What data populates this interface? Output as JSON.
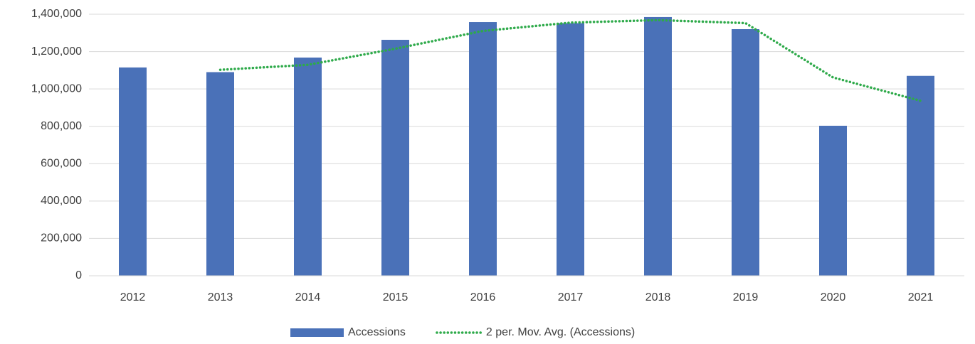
{
  "chart_data": {
    "type": "bar",
    "categories": [
      "2012",
      "2013",
      "2014",
      "2015",
      "2016",
      "2017",
      "2018",
      "2019",
      "2020",
      "2021"
    ],
    "series": [
      {
        "name": "Accessions",
        "type": "bar",
        "color": "#4a71b8",
        "values": [
          1115000,
          1090000,
          1168000,
          1263000,
          1358000,
          1352000,
          1385000,
          1320000,
          803000,
          1070000
        ]
      },
      {
        "name": "2 per. Mov. Avg. (Accessions)",
        "type": "line",
        "color": "#2eaa4a",
        "values": [
          null,
          1102500,
          1129000,
          1215500,
          1310500,
          1355000,
          1368500,
          1352500,
          1061500,
          936500
        ]
      }
    ],
    "ylim": [
      0,
      1400000
    ],
    "yticks": [
      0,
      {
        "value": 200000,
        "label": "200,000"
      },
      {
        "value": 400000,
        "label": "400,000"
      },
      {
        "value": 600000,
        "label": "600,000"
      },
      {
        "value": 800000,
        "label": "800,000"
      },
      {
        "value": 1000000,
        "label": "1,000,000"
      },
      {
        "value": 1200000,
        "label": "1,200,000"
      },
      {
        "value": 1400000,
        "label": "1,400,000"
      }
    ],
    "grid": true,
    "legend": "bottom"
  }
}
